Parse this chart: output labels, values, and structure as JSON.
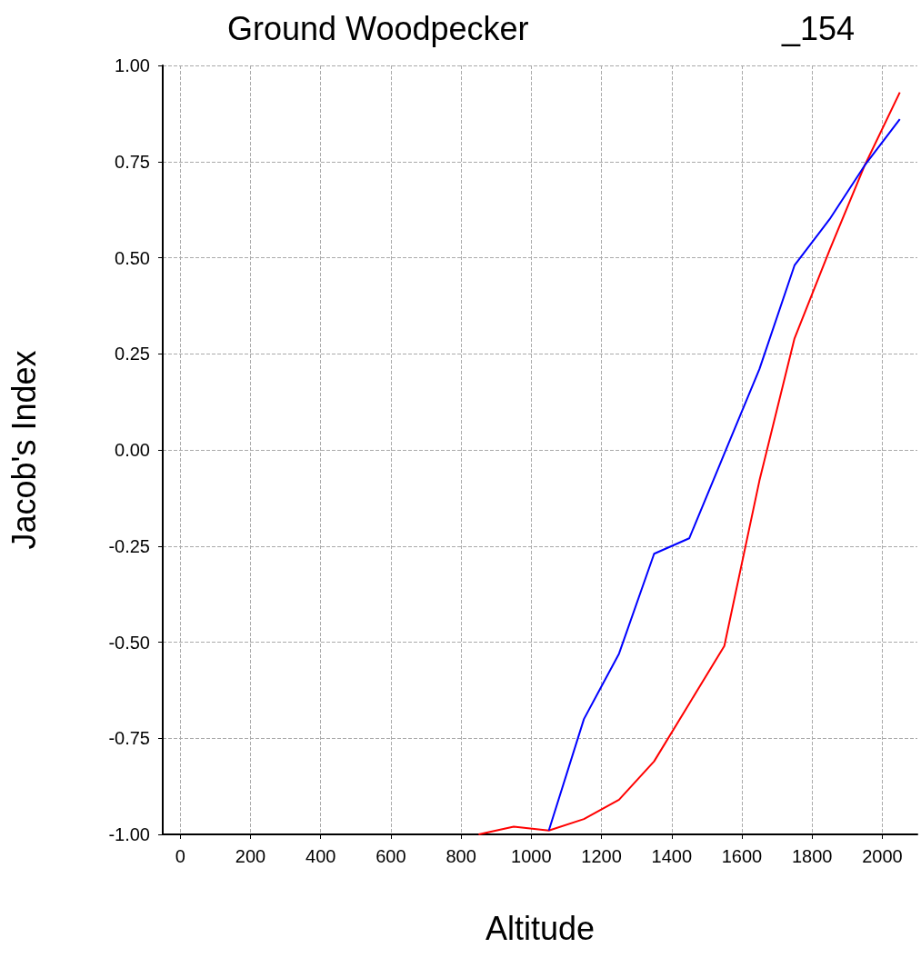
{
  "chart_data": {
    "type": "line",
    "title": "Ground Woodpecker",
    "subtitle": "_154",
    "xlabel": "Altitude",
    "ylabel": "Jacob's Index",
    "series": [
      {
        "color": "#ff0000",
        "x": [
          850,
          950,
          1050,
          1150,
          1250,
          1350,
          1450,
          1550,
          1650,
          1750,
          1850,
          1950,
          2050
        ],
        "values": [
          -1.0,
          -0.98,
          -0.99,
          -0.96,
          -0.91,
          -0.81,
          -0.66,
          -0.51,
          -0.08,
          0.29,
          0.52,
          0.74,
          0.93
        ]
      },
      {
        "color": "#0000ff",
        "x": [
          1050,
          1150,
          1250,
          1350,
          1450,
          1550,
          1650,
          1750,
          1850,
          1950,
          2050
        ],
        "values": [
          -0.99,
          -0.7,
          -0.53,
          -0.27,
          -0.23,
          -0.01,
          0.21,
          0.48,
          0.6,
          0.74,
          0.86
        ]
      }
    ],
    "xlim": [
      -50,
      2100
    ],
    "xticks": [
      0,
      200,
      400,
      600,
      800,
      1000,
      1200,
      1400,
      1600,
      1800,
      2000
    ],
    "ylim": [
      -1,
      1
    ],
    "yticks": [
      {
        "value": -1,
        "label": "-1.00"
      },
      {
        "value": -0.75,
        "label": "-0.75"
      },
      {
        "value": -0.5,
        "label": "-0.50"
      },
      {
        "value": -0.25,
        "label": "-0.25"
      },
      {
        "value": 0,
        "label": "0.00"
      },
      {
        "value": 0.25,
        "label": "0.25"
      },
      {
        "value": 0.5,
        "label": "0.50"
      },
      {
        "value": 0.75,
        "label": "0.75"
      },
      {
        "value": 1,
        "label": "1.00"
      }
    ],
    "grid": true,
    "marker": "none",
    "line_style": "solid"
  }
}
